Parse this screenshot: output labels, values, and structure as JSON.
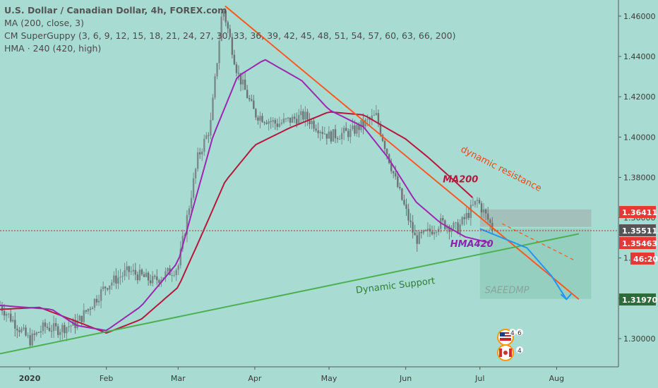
{
  "header": {
    "title": "U.S. Dollar / Canadian Dollar, 4h, FOREX.com",
    "indicators": [
      "MA (200, close, 3)",
      "CM SuperGuppy (3, 6, 9, 12, 15, 18, 21, 24, 27, 30, 33, 36, 39, 42, 45, 48, 51, 54, 57, 60, 63, 66, 200)",
      "HMA · 240 (420, high)"
    ]
  },
  "annotations": {
    "resistance": "dynamic resistance",
    "support": "Dynamic Support",
    "ma200": "MA200",
    "hma420": "HMA420",
    "watermark": "SAEEDMP"
  },
  "price_tags": {
    "upper_box": "1.36411",
    "current": "1.35511",
    "ma_value": "1.35463",
    "countdown": "46:20",
    "target": "1.31970"
  },
  "chart_data": {
    "type": "line",
    "title": "U.S. Dollar / Canadian Dollar, 4h, FOREX.com",
    "ylim": [
      1.286,
      1.468
    ],
    "y_ticks": [
      1.3,
      1.32,
      1.34,
      1.36,
      1.38,
      1.4,
      1.42,
      1.44,
      1.46
    ],
    "y_tick_labels": [
      "1.30000",
      "1.32000",
      "1.34000",
      "1.36000",
      "1.38000",
      "1.40000",
      "1.42000",
      "1.44000",
      "1.46000"
    ],
    "x_labels": [
      "2020",
      "Feb",
      "Mar",
      "Apr",
      "May",
      "Jun",
      "Jul",
      "Aug"
    ],
    "x_label_dates": [
      "2020-01-01",
      "2020-02-01",
      "2020-03-01",
      "2020-04-01",
      "2020-05-01",
      "2020-06-01",
      "2020-07-01",
      "2020-08-01"
    ],
    "series": [
      {
        "name": "MA200",
        "color": "#b8173d",
        "x": [
          "2019-12-20",
          "2020-01-05",
          "2020-01-20",
          "2020-02-01",
          "2020-02-15",
          "2020-03-01",
          "2020-03-10",
          "2020-03-20",
          "2020-04-01",
          "2020-04-15",
          "2020-05-01",
          "2020-05-15",
          "2020-06-01",
          "2020-06-10",
          "2020-06-20",
          "2020-06-28"
        ],
        "values": [
          1.3145,
          1.3155,
          1.3085,
          1.3028,
          1.3095,
          1.3255,
          1.35,
          1.378,
          1.396,
          1.4045,
          1.4125,
          1.411,
          1.399,
          1.39,
          1.379,
          1.37
        ]
      },
      {
        "name": "HMA420",
        "color": "#9c27b0",
        "x": [
          "2019-12-20",
          "2020-01-10",
          "2020-01-20",
          "2020-02-01",
          "2020-02-15",
          "2020-03-01",
          "2020-03-15",
          "2020-03-25",
          "2020-04-05",
          "2020-04-20",
          "2020-05-01",
          "2020-05-15",
          "2020-05-25",
          "2020-06-05",
          "2020-06-15",
          "2020-06-25",
          "2020-07-05"
        ],
        "values": [
          1.3165,
          1.3145,
          1.3065,
          1.304,
          1.316,
          1.338,
          1.4,
          1.43,
          1.4385,
          1.428,
          1.4135,
          1.405,
          1.3895,
          1.368,
          1.3575,
          1.3505,
          1.3475
        ]
      }
    ],
    "price_path": {
      "name": "USDCAD",
      "x": [
        "2019-12-20",
        "2020-01-01",
        "2020-01-07",
        "2020-01-12",
        "2020-01-20",
        "2020-02-01",
        "2020-02-10",
        "2020-02-20",
        "2020-03-01",
        "2020-03-09",
        "2020-03-14",
        "2020-03-19",
        "2020-03-25",
        "2020-04-01",
        "2020-04-10",
        "2020-04-21",
        "2020-05-01",
        "2020-05-10",
        "2020-05-20",
        "2020-05-28",
        "2020-06-05",
        "2020-06-10",
        "2020-06-15",
        "2020-06-22",
        "2020-06-30",
        "2020-07-06"
      ],
      "values": [
        1.3165,
        1.299,
        1.306,
        1.3045,
        1.3075,
        1.3265,
        1.3335,
        1.3285,
        1.3355,
        1.39,
        1.405,
        1.465,
        1.432,
        1.4115,
        1.4065,
        1.4105,
        1.4005,
        1.4025,
        1.4105,
        1.378,
        1.349,
        1.3525,
        1.3575,
        1.3545,
        1.3685,
        1.3551
      ]
    },
    "trendlines": [
      {
        "name": "dynamic resistance",
        "color": "#ff5722",
        "x": [
          "2020-03-20",
          "2020-08-10"
        ],
        "values": [
          1.465,
          1.3195
        ]
      },
      {
        "name": "Dynamic Support",
        "color": "#4caf50",
        "x": [
          "2019-12-20",
          "2020-08-10"
        ],
        "values": [
          1.2925,
          1.352
        ]
      }
    ],
    "projection": {
      "color": "#2196f3",
      "x": [
        "2020-07-01",
        "2020-07-20",
        "2020-07-30",
        "2020-08-05"
      ],
      "values": [
        1.3545,
        1.345,
        1.331,
        1.3195
      ]
    },
    "zones": [
      {
        "label": "resistance zone",
        "color": "#9e9e9e",
        "x": [
          "2020-07-01",
          "2020-08-15"
        ],
        "values": [
          1.3554,
          1.3641
        ]
      },
      {
        "label": "target zone",
        "color": "#7fbfa8",
        "x": [
          "2020-07-01",
          "2020-08-15"
        ],
        "values": [
          1.3197,
          1.3546
        ]
      }
    ],
    "grid": false
  }
}
